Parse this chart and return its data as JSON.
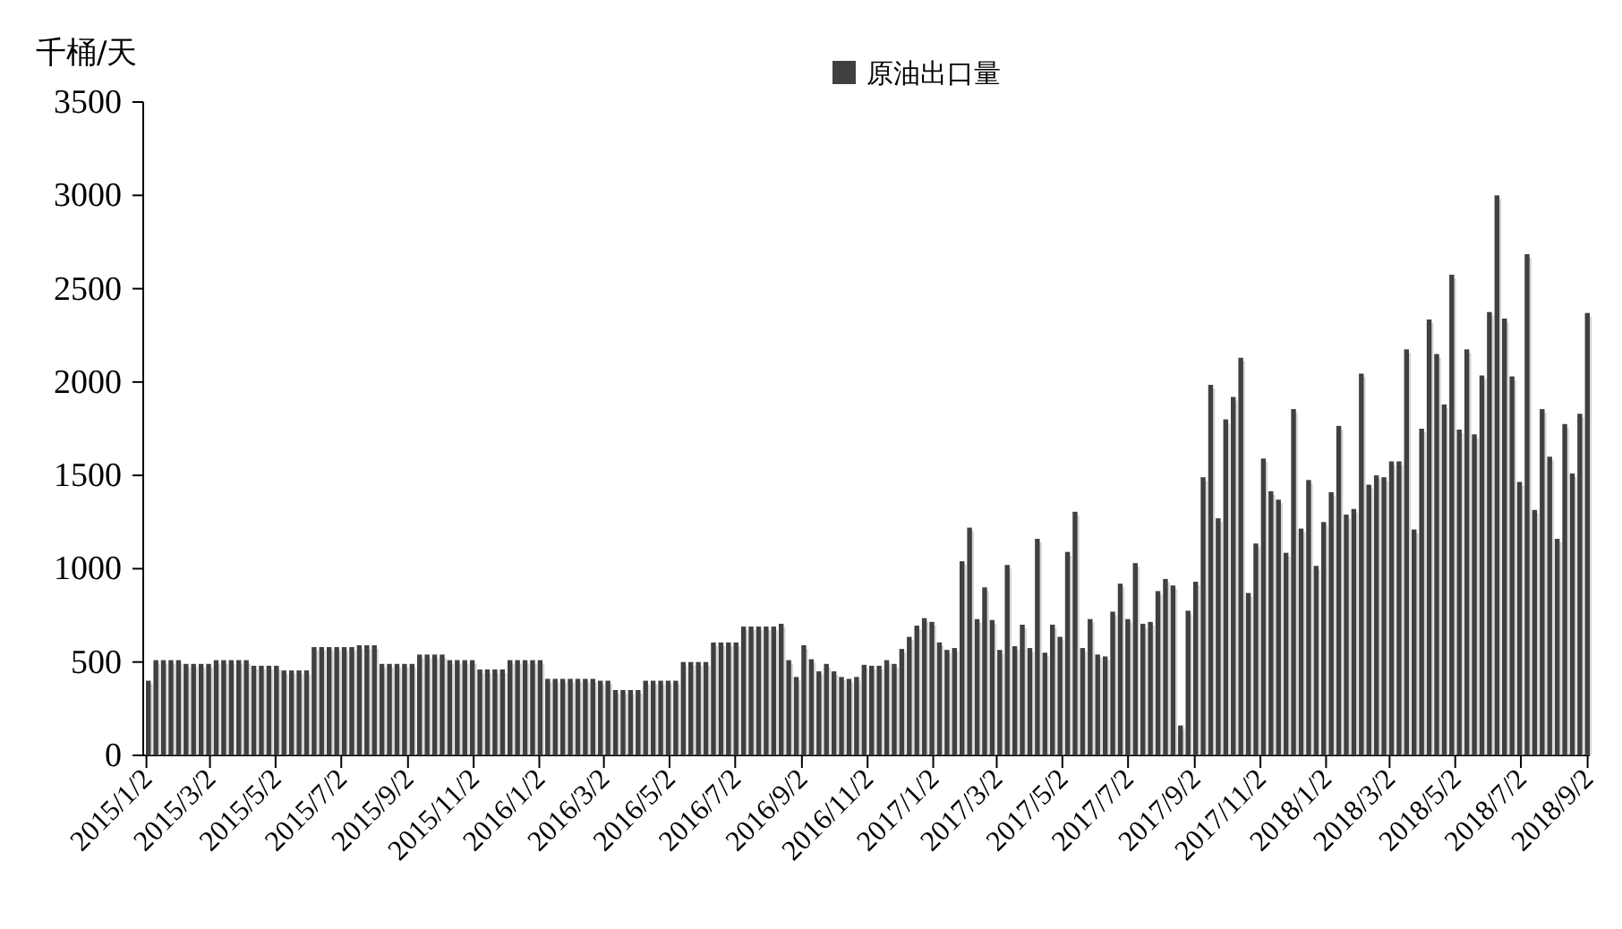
{
  "chart_data": {
    "type": "bar",
    "ylabel": "千桶/天",
    "x": [
      "2015-01-02",
      "2015-01-09",
      "2015-01-16",
      "2015-01-23",
      "2015-01-30",
      "2015-02-06",
      "2015-02-13",
      "2015-02-20",
      "2015-02-27",
      "2015-03-06",
      "2015-03-13",
      "2015-03-20",
      "2015-03-27",
      "2015-04-03",
      "2015-04-10",
      "2015-04-17",
      "2015-04-24",
      "2015-05-01",
      "2015-05-08",
      "2015-05-15",
      "2015-05-22",
      "2015-05-29",
      "2015-06-05",
      "2015-06-12",
      "2015-06-19",
      "2015-06-26",
      "2015-07-03",
      "2015-07-10",
      "2015-07-17",
      "2015-07-24",
      "2015-07-31",
      "2015-08-07",
      "2015-08-14",
      "2015-08-21",
      "2015-08-28",
      "2015-09-04",
      "2015-09-11",
      "2015-09-18",
      "2015-09-25",
      "2015-10-02",
      "2015-10-09",
      "2015-10-16",
      "2015-10-23",
      "2015-10-30",
      "2015-11-06",
      "2015-11-13",
      "2015-11-20",
      "2015-11-27",
      "2015-12-04",
      "2015-12-11",
      "2015-12-18",
      "2015-12-25",
      "2016-01-01",
      "2016-01-08",
      "2016-01-15",
      "2016-01-22",
      "2016-01-29",
      "2016-02-05",
      "2016-02-12",
      "2016-02-19",
      "2016-02-26",
      "2016-03-04",
      "2016-03-11",
      "2016-03-18",
      "2016-03-25",
      "2016-04-01",
      "2016-04-08",
      "2016-04-15",
      "2016-04-22",
      "2016-04-29",
      "2016-05-06",
      "2016-05-13",
      "2016-05-20",
      "2016-05-27",
      "2016-06-03",
      "2016-06-10",
      "2016-06-17",
      "2016-06-24",
      "2016-07-01",
      "2016-07-08",
      "2016-07-15",
      "2016-07-22",
      "2016-07-29",
      "2016-08-05",
      "2016-08-12",
      "2016-08-19",
      "2016-08-26",
      "2016-09-02",
      "2016-09-09",
      "2016-09-16",
      "2016-09-23",
      "2016-09-30",
      "2016-10-07",
      "2016-10-14",
      "2016-10-21",
      "2016-10-28",
      "2016-11-04",
      "2016-11-11",
      "2016-11-18",
      "2016-11-25",
      "2016-12-02",
      "2016-12-09",
      "2016-12-16",
      "2016-12-23",
      "2016-12-30",
      "2017-01-06",
      "2017-01-13",
      "2017-01-20",
      "2017-01-27",
      "2017-02-03",
      "2017-02-10",
      "2017-02-17",
      "2017-02-24",
      "2017-03-03",
      "2017-03-10",
      "2017-03-17",
      "2017-03-24",
      "2017-03-31",
      "2017-04-07",
      "2017-04-14",
      "2017-04-21",
      "2017-04-28",
      "2017-05-05",
      "2017-05-12",
      "2017-05-19",
      "2017-05-26",
      "2017-06-02",
      "2017-06-09",
      "2017-06-16",
      "2017-06-23",
      "2017-06-30",
      "2017-07-07",
      "2017-07-14",
      "2017-07-21",
      "2017-07-28",
      "2017-08-04",
      "2017-08-11",
      "2017-08-18",
      "2017-08-25",
      "2017-09-01",
      "2017-09-08",
      "2017-09-15",
      "2017-09-22",
      "2017-09-29",
      "2017-10-06",
      "2017-10-13",
      "2017-10-20",
      "2017-10-27",
      "2017-11-03",
      "2017-11-10",
      "2017-11-17",
      "2017-11-24",
      "2017-12-01",
      "2017-12-08",
      "2017-12-15",
      "2017-12-22",
      "2017-12-29",
      "2018-01-05",
      "2018-01-12",
      "2018-01-19",
      "2018-01-26",
      "2018-02-02",
      "2018-02-09",
      "2018-02-16",
      "2018-02-23",
      "2018-03-02",
      "2018-03-09",
      "2018-03-16",
      "2018-03-23",
      "2018-03-30",
      "2018-04-06",
      "2018-04-13",
      "2018-04-20",
      "2018-04-27",
      "2018-05-04",
      "2018-05-11",
      "2018-05-18",
      "2018-05-25",
      "2018-06-01",
      "2018-06-08",
      "2018-06-15",
      "2018-06-22",
      "2018-06-29",
      "2018-07-06",
      "2018-07-13",
      "2018-07-20",
      "2018-07-27",
      "2018-08-03",
      "2018-08-10",
      "2018-08-17",
      "2018-08-24",
      "2018-08-31"
    ],
    "series": [
      {
        "name": "原油出口量",
        "color": "#404040",
        "values": [
          400,
          510,
          510,
          510,
          510,
          490,
          490,
          490,
          490,
          510,
          510,
          510,
          510,
          510,
          480,
          480,
          480,
          480,
          455,
          455,
          455,
          455,
          580,
          580,
          580,
          580,
          580,
          580,
          590,
          590,
          590,
          490,
          490,
          490,
          490,
          490,
          540,
          540,
          540,
          540,
          510,
          510,
          510,
          510,
          460,
          460,
          460,
          460,
          510,
          510,
          510,
          510,
          510,
          410,
          410,
          410,
          410,
          410,
          410,
          410,
          400,
          400,
          350,
          350,
          350,
          350,
          400,
          400,
          400,
          400,
          400,
          500,
          500,
          500,
          500,
          605,
          605,
          605,
          605,
          690,
          690,
          690,
          690,
          690,
          705,
          510,
          420,
          590,
          515,
          450,
          490,
          450,
          420,
          410,
          420,
          485,
          480,
          480,
          510,
          490,
          570,
          635,
          695,
          735,
          715,
          605,
          565,
          575,
          1040,
          1220,
          730,
          900,
          725,
          565,
          1020,
          585,
          700,
          575,
          1160,
          550,
          700,
          635,
          1090,
          1305,
          575,
          730,
          540,
          530,
          770,
          920,
          730,
          1030,
          705,
          715,
          880,
          945,
          910,
          160,
          775,
          930,
          1490,
          1985,
          1270,
          1800,
          1920,
          2130,
          870,
          1135,
          1590,
          1415,
          1370,
          1085,
          1855,
          1215,
          1475,
          1015,
          1250,
          1410,
          1765,
          1290,
          1320,
          2045,
          1450,
          1500,
          1490,
          1575,
          1575,
          2175,
          1210,
          1750,
          2335,
          2150,
          1880,
          2575,
          1745,
          2175,
          1720,
          2035,
          2375,
          3000,
          2340,
          2030,
          1465,
          2685,
          1315,
          1855,
          1600,
          1160,
          1775,
          1510,
          1830,
          2370
        ]
      }
    ],
    "xlim": [
      "2014-12-30",
      "2018-09-04"
    ],
    "xticks": [
      {
        "value": "2015-01-02",
        "label": "2015/1/2"
      },
      {
        "value": "2015-03-02",
        "label": "2015/3/2"
      },
      {
        "value": "2015-05-02",
        "label": "2015/5/2"
      },
      {
        "value": "2015-07-02",
        "label": "2015/7/2"
      },
      {
        "value": "2015-09-02",
        "label": "2015/9/2"
      },
      {
        "value": "2015-11-02",
        "label": "2015/11/2"
      },
      {
        "value": "2016-01-02",
        "label": "2016/1/2"
      },
      {
        "value": "2016-03-02",
        "label": "2016/3/2"
      },
      {
        "value": "2016-05-02",
        "label": "2016/5/2"
      },
      {
        "value": "2016-07-02",
        "label": "2016/7/2"
      },
      {
        "value": "2016-09-02",
        "label": "2016/9/2"
      },
      {
        "value": "2016-11-02",
        "label": "2016/11/2"
      },
      {
        "value": "2017-01-02",
        "label": "2017/1/2"
      },
      {
        "value": "2017-03-02",
        "label": "2017/3/2"
      },
      {
        "value": "2017-05-02",
        "label": "2017/5/2"
      },
      {
        "value": "2017-07-02",
        "label": "2017/7/2"
      },
      {
        "value": "2017-09-02",
        "label": "2017/9/2"
      },
      {
        "value": "2017-11-02",
        "label": "2017/11/2"
      },
      {
        "value": "2018-01-02",
        "label": "2018/1/2"
      },
      {
        "value": "2018-03-02",
        "label": "2018/3/2"
      },
      {
        "value": "2018-05-02",
        "label": "2018/5/2"
      },
      {
        "value": "2018-07-02",
        "label": "2018/7/2"
      },
      {
        "value": "2018-09-02",
        "label": "2018/9/2"
      }
    ],
    "ylim": [
      0,
      3500
    ],
    "yticks": [
      0,
      500,
      1000,
      1500,
      2000,
      2500,
      3000,
      3500
    ],
    "legend": "top",
    "grid": false
  }
}
